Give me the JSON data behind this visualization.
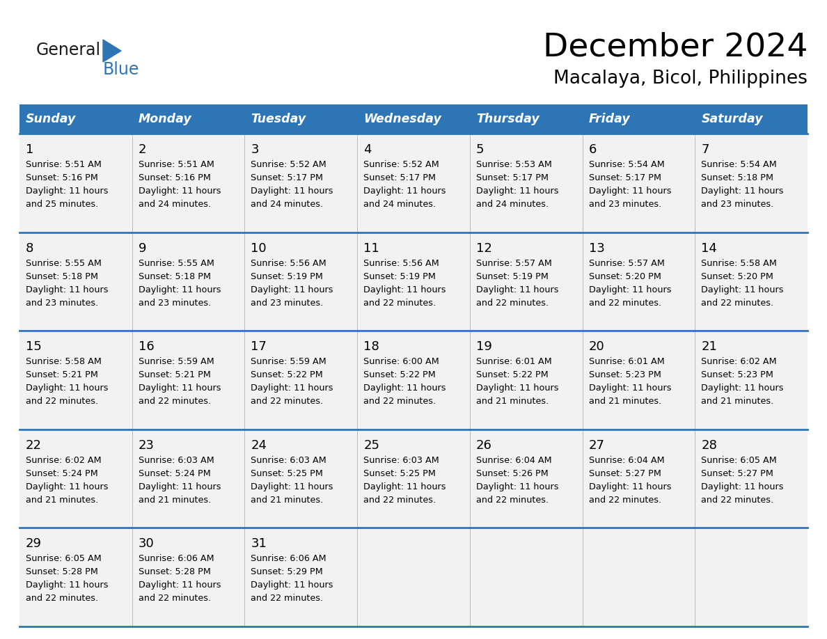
{
  "title": "December 2024",
  "subtitle": "Macalaya, Bicol, Philippines",
  "header_color": "#2E75B6",
  "header_text_color": "#FFFFFF",
  "cell_bg_color": "#F2F2F2",
  "border_color": "#2E75B6",
  "text_color": "#000000",
  "days_of_week": [
    "Sunday",
    "Monday",
    "Tuesday",
    "Wednesday",
    "Thursday",
    "Friday",
    "Saturday"
  ],
  "calendar_data": [
    [
      {
        "day": 1,
        "sunrise": "5:51 AM",
        "sunset": "5:16 PM",
        "daylight_hours": 11,
        "daylight_minutes": 25
      },
      {
        "day": 2,
        "sunrise": "5:51 AM",
        "sunset": "5:16 PM",
        "daylight_hours": 11,
        "daylight_minutes": 24
      },
      {
        "day": 3,
        "sunrise": "5:52 AM",
        "sunset": "5:17 PM",
        "daylight_hours": 11,
        "daylight_minutes": 24
      },
      {
        "day": 4,
        "sunrise": "5:52 AM",
        "sunset": "5:17 PM",
        "daylight_hours": 11,
        "daylight_minutes": 24
      },
      {
        "day": 5,
        "sunrise": "5:53 AM",
        "sunset": "5:17 PM",
        "daylight_hours": 11,
        "daylight_minutes": 24
      },
      {
        "day": 6,
        "sunrise": "5:54 AM",
        "sunset": "5:17 PM",
        "daylight_hours": 11,
        "daylight_minutes": 23
      },
      {
        "day": 7,
        "sunrise": "5:54 AM",
        "sunset": "5:18 PM",
        "daylight_hours": 11,
        "daylight_minutes": 23
      }
    ],
    [
      {
        "day": 8,
        "sunrise": "5:55 AM",
        "sunset": "5:18 PM",
        "daylight_hours": 11,
        "daylight_minutes": 23
      },
      {
        "day": 9,
        "sunrise": "5:55 AM",
        "sunset": "5:18 PM",
        "daylight_hours": 11,
        "daylight_minutes": 23
      },
      {
        "day": 10,
        "sunrise": "5:56 AM",
        "sunset": "5:19 PM",
        "daylight_hours": 11,
        "daylight_minutes": 23
      },
      {
        "day": 11,
        "sunrise": "5:56 AM",
        "sunset": "5:19 PM",
        "daylight_hours": 11,
        "daylight_minutes": 22
      },
      {
        "day": 12,
        "sunrise": "5:57 AM",
        "sunset": "5:19 PM",
        "daylight_hours": 11,
        "daylight_minutes": 22
      },
      {
        "day": 13,
        "sunrise": "5:57 AM",
        "sunset": "5:20 PM",
        "daylight_hours": 11,
        "daylight_minutes": 22
      },
      {
        "day": 14,
        "sunrise": "5:58 AM",
        "sunset": "5:20 PM",
        "daylight_hours": 11,
        "daylight_minutes": 22
      }
    ],
    [
      {
        "day": 15,
        "sunrise": "5:58 AM",
        "sunset": "5:21 PM",
        "daylight_hours": 11,
        "daylight_minutes": 22
      },
      {
        "day": 16,
        "sunrise": "5:59 AM",
        "sunset": "5:21 PM",
        "daylight_hours": 11,
        "daylight_minutes": 22
      },
      {
        "day": 17,
        "sunrise": "5:59 AM",
        "sunset": "5:22 PM",
        "daylight_hours": 11,
        "daylight_minutes": 22
      },
      {
        "day": 18,
        "sunrise": "6:00 AM",
        "sunset": "5:22 PM",
        "daylight_hours": 11,
        "daylight_minutes": 22
      },
      {
        "day": 19,
        "sunrise": "6:01 AM",
        "sunset": "5:22 PM",
        "daylight_hours": 11,
        "daylight_minutes": 21
      },
      {
        "day": 20,
        "sunrise": "6:01 AM",
        "sunset": "5:23 PM",
        "daylight_hours": 11,
        "daylight_minutes": 21
      },
      {
        "day": 21,
        "sunrise": "6:02 AM",
        "sunset": "5:23 PM",
        "daylight_hours": 11,
        "daylight_minutes": 21
      }
    ],
    [
      {
        "day": 22,
        "sunrise": "6:02 AM",
        "sunset": "5:24 PM",
        "daylight_hours": 11,
        "daylight_minutes": 21
      },
      {
        "day": 23,
        "sunrise": "6:03 AM",
        "sunset": "5:24 PM",
        "daylight_hours": 11,
        "daylight_minutes": 21
      },
      {
        "day": 24,
        "sunrise": "6:03 AM",
        "sunset": "5:25 PM",
        "daylight_hours": 11,
        "daylight_minutes": 21
      },
      {
        "day": 25,
        "sunrise": "6:03 AM",
        "sunset": "5:25 PM",
        "daylight_hours": 11,
        "daylight_minutes": 22
      },
      {
        "day": 26,
        "sunrise": "6:04 AM",
        "sunset": "5:26 PM",
        "daylight_hours": 11,
        "daylight_minutes": 22
      },
      {
        "day": 27,
        "sunrise": "6:04 AM",
        "sunset": "5:27 PM",
        "daylight_hours": 11,
        "daylight_minutes": 22
      },
      {
        "day": 28,
        "sunrise": "6:05 AM",
        "sunset": "5:27 PM",
        "daylight_hours": 11,
        "daylight_minutes": 22
      }
    ],
    [
      {
        "day": 29,
        "sunrise": "6:05 AM",
        "sunset": "5:28 PM",
        "daylight_hours": 11,
        "daylight_minutes": 22
      },
      {
        "day": 30,
        "sunrise": "6:06 AM",
        "sunset": "5:28 PM",
        "daylight_hours": 11,
        "daylight_minutes": 22
      },
      {
        "day": 31,
        "sunrise": "6:06 AM",
        "sunset": "5:29 PM",
        "daylight_hours": 11,
        "daylight_minutes": 22
      },
      null,
      null,
      null,
      null
    ]
  ],
  "logo_text_general": "General",
  "logo_text_blue": "Blue",
  "logo_triangle_color": "#2E75B6",
  "logo_general_color": "#1a1a1a",
  "logo_blue_color": "#2E75B6"
}
